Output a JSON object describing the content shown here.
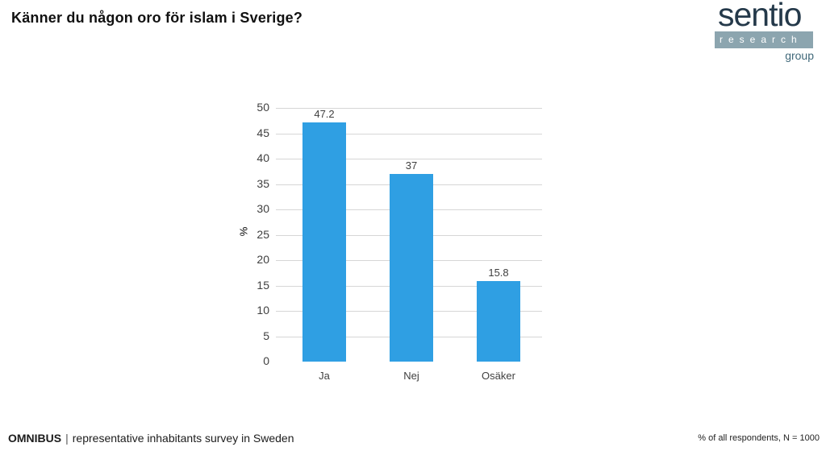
{
  "page": {
    "title": "Känner du någon oro för islam i Sverige?",
    "footer_left": {
      "brand": "OMNIBUS",
      "separator": "|",
      "text": "representative inhabitants survey in Sweden"
    },
    "footer_right": "% of all respondents, N = 1000"
  },
  "logo": {
    "name": "sentio",
    "band_text": "research",
    "sub_text": "group",
    "colors": {
      "wordmark": "#24394A",
      "band": "#8CA5AF",
      "band_text": "#FFFFFF",
      "sub_text": "#41697A"
    }
  },
  "chart_data": {
    "type": "bar",
    "categories": [
      "Ja",
      "Nej",
      "Osäker"
    ],
    "values": [
      47.2,
      37,
      15.8
    ],
    "value_labels": [
      "47.2",
      "37",
      "15.8"
    ],
    "title": "",
    "xlabel": "",
    "ylabel": "%",
    "ylim": [
      0,
      50
    ],
    "ytick_step": 5,
    "grid": true,
    "legend": "none",
    "colors": {
      "bar": "#2F9FE3",
      "gridline": "#D6D6D6",
      "tick_label": "#3F3F3F"
    }
  }
}
